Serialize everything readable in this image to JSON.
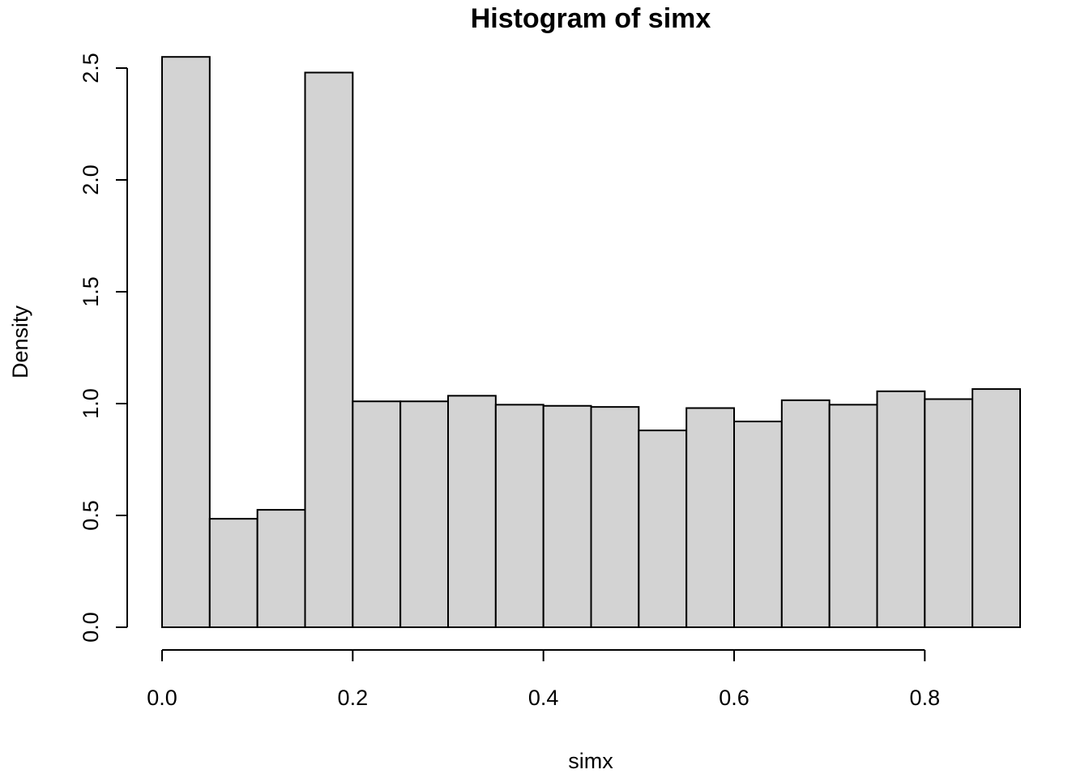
{
  "chart_data": {
    "type": "bar",
    "title": "Histogram of simx",
    "xlabel": "simx",
    "ylabel": "Density",
    "bin_edges": [
      0.0,
      0.05,
      0.1,
      0.15,
      0.2,
      0.25,
      0.3,
      0.35,
      0.4,
      0.45,
      0.5,
      0.55,
      0.6,
      0.65,
      0.7,
      0.75,
      0.8,
      0.85,
      0.9
    ],
    "values": [
      2.55,
      0.485,
      0.525,
      2.48,
      1.01,
      1.01,
      1.035,
      0.995,
      0.99,
      0.985,
      0.88,
      0.98,
      0.92,
      1.015,
      0.995,
      1.055,
      1.02,
      1.065
    ],
    "xlim": [
      0.0,
      0.9
    ],
    "ylim": [
      0.0,
      2.5
    ],
    "x_ticks": [
      0.0,
      0.2,
      0.4,
      0.6,
      0.8
    ],
    "x_tick_labels": [
      "0.0",
      "0.2",
      "0.4",
      "0.6",
      "0.8"
    ],
    "y_ticks": [
      0.0,
      0.5,
      1.0,
      1.5,
      2.0,
      2.5
    ],
    "y_tick_labels": [
      "0.0",
      "0.5",
      "1.0",
      "1.5",
      "2.0",
      "2.5"
    ],
    "grid": false,
    "legend": "none",
    "bar_color": "#d3d3d3",
    "edge_color": "#000000"
  }
}
